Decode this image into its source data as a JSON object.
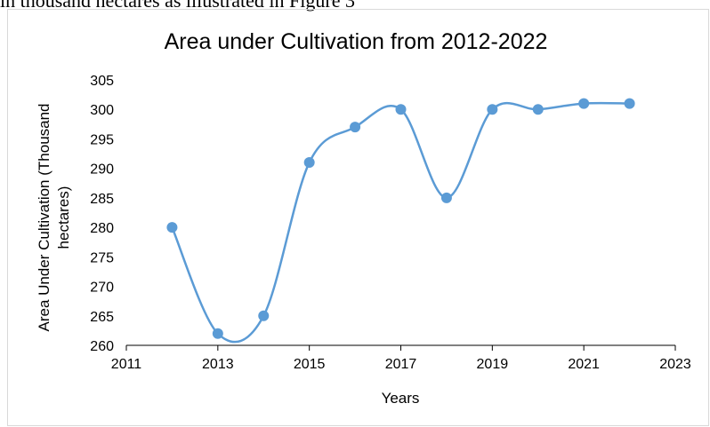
{
  "top_text": "in thousand hectares as illustrated in Figure 3",
  "colors": {
    "series": "#5b9bd5",
    "axis": "#000000",
    "frame": "#d9d9d9"
  },
  "chart_data": {
    "type": "line",
    "title": "Area under Cultivation from 2012-2022",
    "xlabel": "Years",
    "ylabel": [
      "Area Under Cultivation (Thousand",
      "hectares)"
    ],
    "xlim": [
      2011,
      2023
    ],
    "ylim": [
      260,
      305
    ],
    "x_ticks": [
      2011,
      2013,
      2015,
      2017,
      2019,
      2021,
      2023
    ],
    "y_ticks": [
      260,
      265,
      270,
      275,
      280,
      285,
      290,
      295,
      300,
      305
    ],
    "smooth": true,
    "grid": false,
    "series": [
      {
        "x": [
          2012,
          2013,
          2014,
          2015,
          2016,
          2017,
          2018,
          2019,
          2020,
          2021,
          2022
        ],
        "values": [
          280,
          262,
          265,
          291,
          297,
          300,
          285,
          300,
          300,
          301,
          301
        ]
      }
    ]
  }
}
